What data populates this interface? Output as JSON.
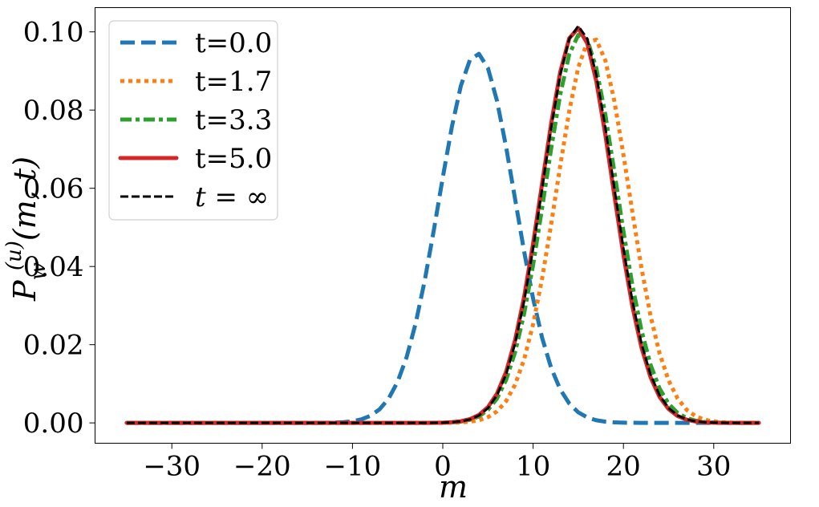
{
  "chart_data": {
    "type": "line",
    "xlabel": "m",
    "ylabel": {
      "base": "P",
      "sub": "w",
      "sup": "(u)",
      "args": "(m, t)"
    },
    "xlim": [
      -38.5,
      38.5
    ],
    "ylim": [
      -0.0052,
      0.1062
    ],
    "x_ticks": [
      -30,
      -20,
      -10,
      0,
      10,
      20,
      30
    ],
    "x_tick_labels": [
      "−30",
      "−20",
      "−10",
      "0",
      "10",
      "20",
      "30"
    ],
    "y_ticks": [
      0.0,
      0.02,
      0.04,
      0.06,
      0.08,
      0.1
    ],
    "y_tick_labels": [
      "0.00",
      "0.02",
      "0.04",
      "0.06",
      "0.08",
      "0.10"
    ],
    "grid": false,
    "legend_position": "top-left",
    "x_range": [
      -35,
      35
    ],
    "series": [
      {
        "name": "t=0.0",
        "color": "#1f77b4",
        "style": "dashed",
        "mean": 3.8,
        "sd": 4.2,
        "peak": 0.0945
      },
      {
        "name": "t=1.7",
        "color": "#ff7f0e",
        "style": "dotted",
        "mean": 16.6,
        "sd": 4.0,
        "peak": 0.0985
      },
      {
        "name": "t=3.3",
        "color": "#2ca02c",
        "style": "dashdot",
        "mean": 15.3,
        "sd": 3.95,
        "peak": 0.0995
      },
      {
        "name": "t=5.0",
        "color": "#d62728",
        "style": "solid",
        "mean": 14.9,
        "sd": 3.9,
        "peak": 0.101
      },
      {
        "name": "t = ∞",
        "color": "#000000",
        "style": "dashed-thin",
        "mean": 15.0,
        "sd": 3.9,
        "peak": 0.1015
      }
    ]
  }
}
